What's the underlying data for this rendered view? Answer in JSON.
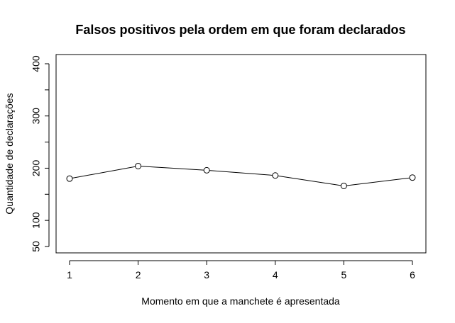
{
  "chart_data": {
    "type": "line",
    "title": "Falsos positivos pela ordem em que foram declarados",
    "xlabel": "Momento em que a manchete é apresentada",
    "ylabel": "Quantidade de declarações",
    "x": [
      1,
      2,
      3,
      4,
      5,
      6
    ],
    "series": [
      {
        "values": [
          180,
          204,
          196,
          186,
          166,
          182
        ]
      }
    ],
    "xticks": [
      "1",
      "2",
      "3",
      "4",
      "5",
      "6"
    ],
    "yticks": [
      {
        "value": 50,
        "label": "50"
      },
      {
        "value": 100,
        "label": "100"
      },
      {
        "value": 150,
        "label": ""
      },
      {
        "value": 200,
        "label": "200"
      },
      {
        "value": 250,
        "label": ""
      },
      {
        "value": 300,
        "label": "300"
      },
      {
        "value": 350,
        "label": ""
      },
      {
        "value": 400,
        "label": "400"
      }
    ],
    "xlim": [
      1,
      6
    ],
    "ylim": [
      50,
      400
    ],
    "grid": false,
    "legend": "none",
    "colors": {
      "line": "#000000",
      "axis": "#000000",
      "background": "#ffffff"
    }
  }
}
